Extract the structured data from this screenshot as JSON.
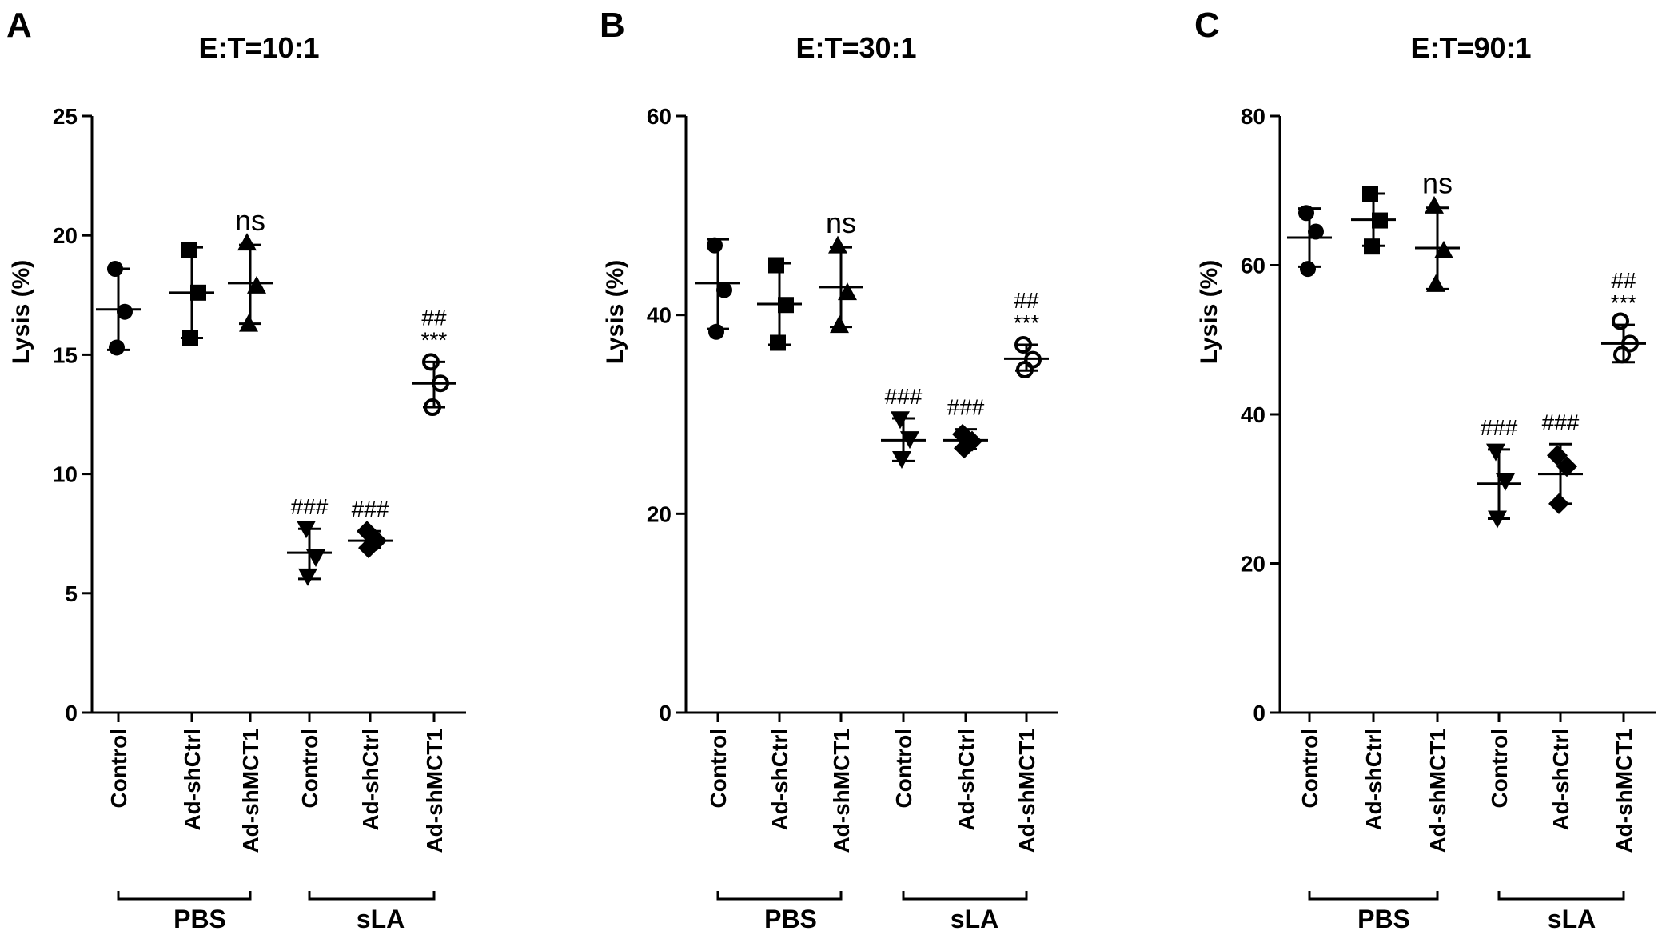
{
  "chart_data": [
    {
      "type": "scatter",
      "panel_label": "A",
      "title": "E:T=10:1",
      "ylabel": "Lysis (%)",
      "ylim": [
        0,
        25
      ],
      "yticks": [
        0,
        5,
        10,
        15,
        20,
        25
      ],
      "groups": [
        {
          "name": "Control",
          "group": "PBS",
          "marker": "circle",
          "points": [
            18.6,
            16.8,
            15.3
          ],
          "mean": 16.9,
          "sd_low": 15.2,
          "sd_high": 18.6,
          "annotation": []
        },
        {
          "name": "Ad-shCtrl",
          "group": "PBS",
          "marker": "square",
          "points": [
            19.4,
            17.6,
            15.7
          ],
          "mean": 17.6,
          "sd_low": 15.7,
          "sd_high": 19.5,
          "annotation": []
        },
        {
          "name": "Ad-shMCT1",
          "group": "PBS",
          "marker": "triangle-up",
          "points": [
            19.7,
            17.9,
            16.3
          ],
          "mean": 18.0,
          "sd_low": 16.3,
          "sd_high": 19.6,
          "annotation": [
            "ns"
          ]
        },
        {
          "name": "Control",
          "group": "sLA",
          "marker": "triangle-down",
          "points": [
            7.7,
            6.5,
            5.7
          ],
          "mean": 6.7,
          "sd_low": 5.6,
          "sd_high": 7.7,
          "annotation": [
            "###"
          ]
        },
        {
          "name": "Ad-shCtrl",
          "group": "sLA",
          "marker": "diamond",
          "points": [
            7.6,
            7.2,
            6.9
          ],
          "mean": 7.2,
          "sd_low": 6.9,
          "sd_high": 7.6,
          "annotation": [
            "###"
          ]
        },
        {
          "name": "Ad-shMCT1",
          "group": "sLA",
          "marker": "circle-open",
          "points": [
            14.7,
            13.8,
            12.8
          ],
          "mean": 13.8,
          "sd_low": 12.8,
          "sd_high": 14.7,
          "annotation": [
            "##",
            "***"
          ]
        }
      ],
      "group_brackets": [
        {
          "label": "PBS",
          "from": 0,
          "to": 2
        },
        {
          "label": "sLA",
          "from": 3,
          "to": 5
        }
      ]
    },
    {
      "type": "scatter",
      "panel_label": "B",
      "title": "E:T=30:1",
      "ylabel": "Lysis (%)",
      "ylim": [
        0,
        60
      ],
      "yticks": [
        0,
        20,
        40,
        60
      ],
      "groups": [
        {
          "name": "Control",
          "group": "PBS",
          "marker": "circle",
          "points": [
            47.0,
            42.5,
            38.3
          ],
          "mean": 43.2,
          "sd_low": 38.6,
          "sd_high": 47.6,
          "annotation": []
        },
        {
          "name": "Ad-shCtrl",
          "group": "PBS",
          "marker": "square",
          "points": [
            45.0,
            41.0,
            37.2
          ],
          "mean": 41.1,
          "sd_low": 37.0,
          "sd_high": 45.2,
          "annotation": []
        },
        {
          "name": "Ad-shMCT1",
          "group": "PBS",
          "marker": "triangle-up",
          "points": [
            47.0,
            42.3,
            39.0
          ],
          "mean": 42.8,
          "sd_low": 38.8,
          "sd_high": 46.8,
          "annotation": [
            "ns"
          ]
        },
        {
          "name": "Control",
          "group": "sLA",
          "marker": "triangle-down",
          "points": [
            29.5,
            27.5,
            25.5
          ],
          "mean": 27.4,
          "sd_low": 25.3,
          "sd_high": 29.6,
          "annotation": [
            "###"
          ]
        },
        {
          "name": "Ad-shCtrl",
          "group": "sLA",
          "marker": "diamond",
          "points": [
            28.0,
            27.3,
            26.6
          ],
          "mean": 27.4,
          "sd_low": 26.5,
          "sd_high": 28.5,
          "annotation": [
            "###"
          ]
        },
        {
          "name": "Ad-shMCT1",
          "group": "sLA",
          "marker": "circle-open",
          "points": [
            37.0,
            35.5,
            34.5
          ],
          "mean": 35.6,
          "sd_low": 34.4,
          "sd_high": 37.0,
          "annotation": [
            "##",
            "***"
          ]
        }
      ],
      "group_brackets": [
        {
          "label": "PBS",
          "from": 0,
          "to": 2
        },
        {
          "label": "sLA",
          "from": 3,
          "to": 5
        }
      ]
    },
    {
      "type": "scatter",
      "panel_label": "C",
      "title": "E:T=90:1",
      "ylabel": "Lysis (%)",
      "ylim": [
        0,
        80
      ],
      "yticks": [
        0,
        20,
        40,
        60,
        80
      ],
      "groups": [
        {
          "name": "Control",
          "group": "PBS",
          "marker": "circle",
          "points": [
            67.0,
            64.5,
            59.5
          ],
          "mean": 63.7,
          "sd_low": 59.8,
          "sd_high": 67.6,
          "annotation": []
        },
        {
          "name": "Ad-shCtrl",
          "group": "PBS",
          "marker": "square",
          "points": [
            69.5,
            66.0,
            62.5
          ],
          "mean": 66.1,
          "sd_low": 62.6,
          "sd_high": 69.6,
          "annotation": []
        },
        {
          "name": "Ad-shMCT1",
          "group": "PBS",
          "marker": "triangle-up",
          "points": [
            68.0,
            62.0,
            57.5
          ],
          "mean": 62.3,
          "sd_low": 56.8,
          "sd_high": 67.7,
          "annotation": [
            "ns"
          ]
        },
        {
          "name": "Control",
          "group": "sLA",
          "marker": "triangle-down",
          "points": [
            35.0,
            31.0,
            26.0
          ],
          "mean": 30.7,
          "sd_low": 26.0,
          "sd_high": 35.3,
          "annotation": [
            "###"
          ]
        },
        {
          "name": "Ad-shCtrl",
          "group": "sLA",
          "marker": "diamond",
          "points": [
            34.5,
            33.0,
            28.0
          ],
          "mean": 32.0,
          "sd_low": 28.0,
          "sd_high": 36.0,
          "annotation": [
            "###"
          ]
        },
        {
          "name": "Ad-shMCT1",
          "group": "sLA",
          "marker": "circle-open",
          "points": [
            52.5,
            49.5,
            48.0
          ],
          "mean": 49.5,
          "sd_low": 47.0,
          "sd_high": 52.0,
          "annotation": [
            "##",
            "***"
          ]
        }
      ],
      "group_brackets": [
        {
          "label": "PBS",
          "from": 0,
          "to": 2
        },
        {
          "label": "sLA",
          "from": 3,
          "to": 5
        }
      ]
    }
  ]
}
